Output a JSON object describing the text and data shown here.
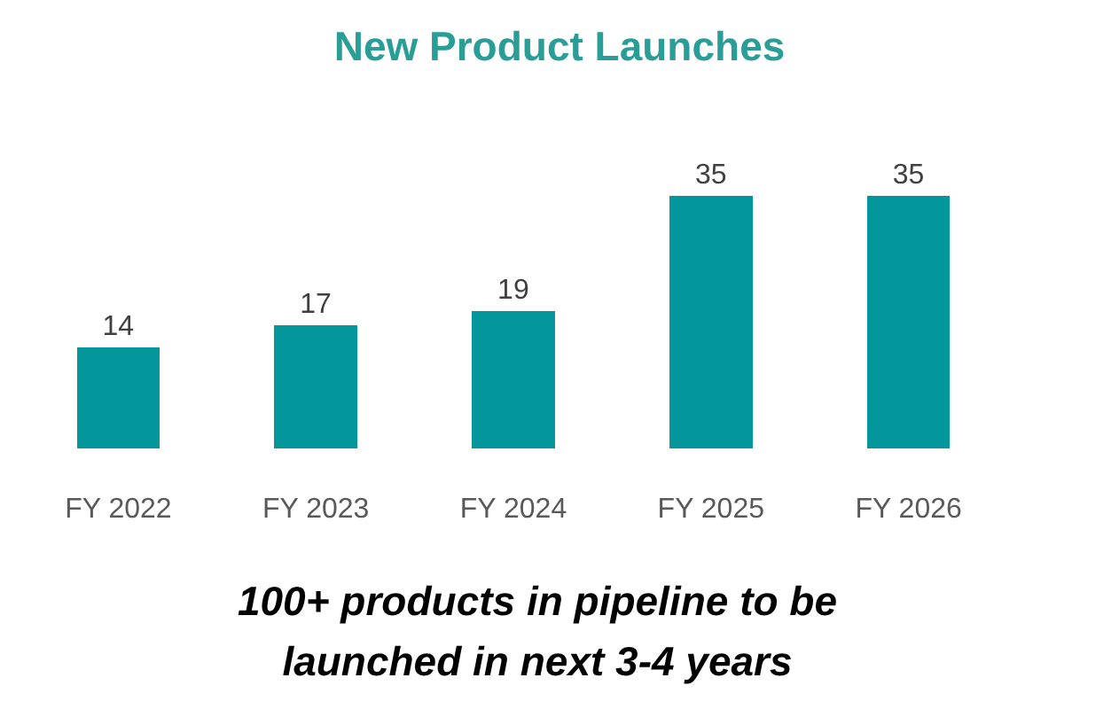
{
  "chart_data": {
    "type": "bar",
    "title": "New Product Launches",
    "categories": [
      "FY 2022",
      "FY 2023",
      "FY 2024",
      "FY 2025",
      "FY 2026"
    ],
    "values": [
      14,
      17,
      19,
      35,
      35
    ],
    "color": "#03979c",
    "data_labels": true,
    "annotations": [
      "100+ products in pipeline to be launched in next 3-4 years"
    ]
  }
}
